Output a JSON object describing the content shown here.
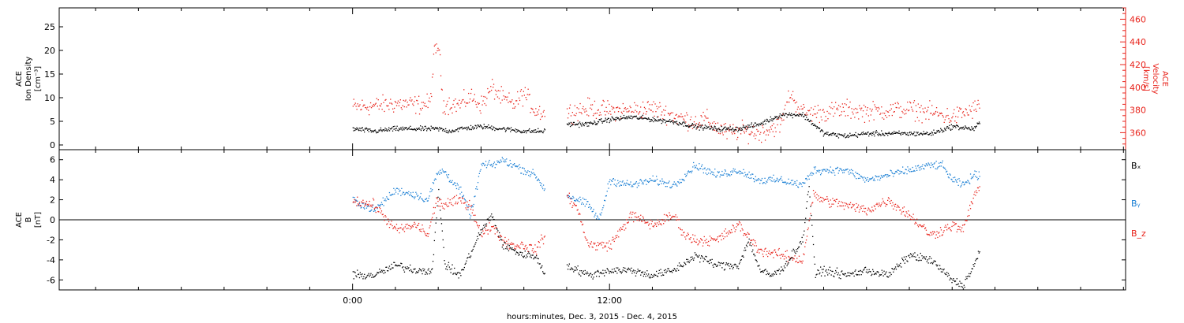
{
  "chart_data": [
    {
      "type": "scatter",
      "panel": "top",
      "ylabel_lines": [
        "ACE",
        "Ion Density",
        "[cm⁻³]"
      ],
      "ylim": [
        -1,
        29
      ],
      "yticks": [
        0,
        5,
        10,
        15,
        20,
        25
      ],
      "y2label_lines": [
        "ACE",
        "Velocity",
        "[km/s]"
      ],
      "y2lim": [
        345,
        470
      ],
      "y2ticks": [
        360,
        380,
        400,
        420,
        440,
        460
      ],
      "y2_color": "#e8231b",
      "series": [
        {
          "name": "",
          "axis": "left",
          "color": "#000000",
          "x": [
            0,
            1,
            2,
            3,
            4,
            4.5,
            5,
            6,
            7,
            8,
            8.99,
            9.05,
            10,
            11,
            12,
            13,
            14,
            15,
            16,
            17,
            18,
            19,
            20,
            21,
            22,
            23,
            24,
            25,
            26,
            27,
            28,
            29,
            29.3
          ],
          "y": [
            3.5,
            3.0,
            3.5,
            3.5,
            3.5,
            3.0,
            3.5,
            4.0,
            3.5,
            3.0,
            3.0,
            null,
            4.5,
            4.5,
            5.5,
            6.0,
            5.5,
            5.0,
            4.0,
            3.5,
            3.5,
            4.5,
            6.5,
            6.5,
            2.5,
            2.0,
            2.5,
            2.5,
            2.5,
            2.5,
            4.0,
            3.5,
            5.0
          ]
        },
        {
          "name": "",
          "axis": "right",
          "color": "#e8231b",
          "x": [
            0,
            1,
            2,
            3,
            3.6,
            3.8,
            4.0,
            4.2,
            5,
            5.5,
            6,
            6.5,
            7,
            7.5,
            8,
            8.5,
            8.99,
            9.05,
            10,
            11,
            12,
            13,
            14,
            15,
            16,
            16.5,
            17,
            17.5,
            18,
            19,
            20,
            20.4,
            21,
            22,
            23,
            24,
            25,
            26,
            27,
            28,
            29,
            29.3
          ],
          "y": [
            383,
            384,
            386,
            385,
            386,
            430,
            438,
            386,
            385,
            392,
            385,
            400,
            390,
            385,
            395,
            380,
            378,
            null,
            378,
            382,
            380,
            380,
            382,
            375,
            370,
            372,
            365,
            360,
            362,
            360,
            368,
            395,
            378,
            378,
            381,
            379,
            380,
            381,
            378,
            374,
            381,
            384
          ]
        }
      ]
    },
    {
      "type": "scatter",
      "panel": "bottom",
      "ylabel_lines": [
        "ACE",
        "B",
        "[nT]"
      ],
      "ylim": [
        -7,
        7
      ],
      "yticks": [
        -6,
        -4,
        -2,
        0,
        2,
        4,
        6
      ],
      "zero_line": true,
      "legend": [
        "Bₓ",
        "Bᵧ",
        "B_z"
      ],
      "legend_placement": "right",
      "series": [
        {
          "name": "Bₓ",
          "color": "#000000",
          "x": [
            0,
            1,
            2,
            3,
            3.7,
            4.0,
            4.3,
            5,
            6,
            6.5,
            7,
            8,
            8.5,
            8.99,
            9.05,
            10,
            11,
            12,
            13,
            14,
            15,
            16,
            17,
            18,
            18.5,
            19,
            19.5,
            20,
            21,
            21.3,
            21.6,
            22,
            23,
            24,
            25,
            26,
            27,
            28,
            28.5,
            29,
            29.3
          ],
          "y": [
            -5.5,
            -5.5,
            -4.5,
            -5.0,
            -5.0,
            3.0,
            -4.5,
            -5.5,
            -1.0,
            0.5,
            -2.5,
            -3.5,
            -3.5,
            -5.5,
            null,
            -4.5,
            -5.5,
            -5.0,
            -5.0,
            -5.5,
            -5.0,
            -3.5,
            -4.5,
            -4.5,
            -2.0,
            -5.0,
            -5.5,
            -5.0,
            -2.0,
            3.5,
            -5.5,
            -5.0,
            -5.5,
            -5.0,
            -5.5,
            -3.5,
            -4.0,
            -6.0,
            -6.5,
            -4.5,
            -3.0
          ]
        },
        {
          "name": "Bᵧ",
          "color": "#1a7fd4",
          "x": [
            0,
            1,
            2,
            3,
            3.5,
            3.9,
            4.2,
            5,
            5.5,
            6,
            6.5,
            7,
            7.5,
            8,
            8.5,
            8.99,
            9.05,
            10,
            11,
            11.5,
            12,
            13,
            14,
            15,
            16,
            16.5,
            17,
            18,
            19,
            20,
            21,
            21.5,
            22,
            23,
            24,
            25,
            26,
            27,
            27.5,
            28,
            28.5,
            29,
            29.3
          ],
          "y": [
            2.0,
            1.0,
            3.0,
            2.5,
            2.0,
            4.5,
            5.0,
            3.0,
            0.5,
            5.5,
            5.5,
            6.0,
            5.5,
            5.0,
            4.5,
            3.0,
            null,
            2.5,
            1.5,
            0.0,
            4.0,
            3.5,
            4.0,
            3.5,
            5.5,
            5.0,
            4.5,
            5.0,
            4.0,
            4.0,
            3.5,
            5.0,
            5.0,
            5.0,
            4.0,
            4.5,
            5.0,
            5.5,
            5.5,
            4.0,
            3.5,
            4.5,
            4.5
          ]
        },
        {
          "name": "B_z",
          "color": "#e8231b",
          "x": [
            0,
            1,
            2,
            3,
            3.5,
            3.9,
            4.2,
            5,
            5.5,
            6,
            6.5,
            7,
            7.5,
            8,
            8.5,
            8.99,
            9.05,
            10,
            10.5,
            11,
            12,
            13,
            14,
            15,
            15.5,
            16,
            17,
            18,
            19,
            20,
            21,
            21.5,
            22,
            23,
            24,
            25,
            26,
            27,
            28,
            28.5,
            29,
            29.3
          ],
          "y": [
            2.0,
            1.5,
            -1.0,
            -0.5,
            -1.5,
            2.0,
            1.5,
            2.0,
            1.5,
            -1.5,
            -0.5,
            -2.0,
            -2.5,
            -2.5,
            -3.0,
            -1.5,
            null,
            2.5,
            1.0,
            -2.5,
            -2.5,
            0.5,
            -0.5,
            0.5,
            -1.5,
            -2.0,
            -2.0,
            -0.5,
            -3.0,
            -3.5,
            -4.0,
            2.5,
            2.0,
            1.5,
            1.0,
            2.0,
            0.5,
            -1.5,
            -0.5,
            -1.0,
            2.5,
            3.5
          ]
        }
      ]
    }
  ],
  "x_axis": {
    "xlim": [
      -13.7,
      36.1
    ],
    "labeled_ticks": [
      {
        "x": 0,
        "label": "0:00"
      },
      {
        "x": 12,
        "label": "12:00"
      }
    ],
    "minor_tick_step": 2,
    "xlabel": "hours:minutes, Dec.  3, 2015 - Dec.  4, 2015"
  }
}
